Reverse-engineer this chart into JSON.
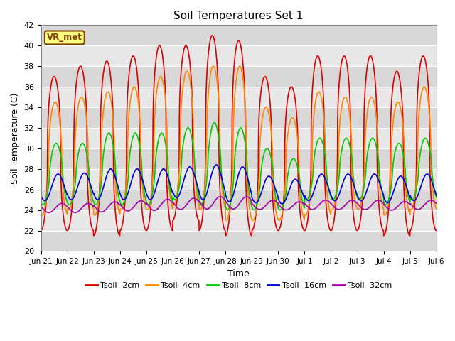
{
  "title": "Soil Temperatures Set 1",
  "xlabel": "Time",
  "ylabel": "Soil Temperature (C)",
  "ylim": [
    20,
    42
  ],
  "figsize": [
    6.4,
    4.8
  ],
  "dpi": 100,
  "background_color": "#ffffff",
  "plot_bg_color": "#e0e0e0",
  "grid_color": "#ffffff",
  "annotation_text": "VR_met",
  "annotation_bg": "#ffff80",
  "annotation_border": "#804000",
  "lines": [
    {
      "label": "Tsoil -2cm",
      "color": "#dd0000",
      "lw": 1.2
    },
    {
      "label": "Tsoil -4cm",
      "color": "#ff8800",
      "lw": 1.2
    },
    {
      "label": "Tsoil -8cm",
      "color": "#00cc00",
      "lw": 1.2
    },
    {
      "label": "Tsoil -16cm",
      "color": "#0000dd",
      "lw": 1.2
    },
    {
      "label": "Tsoil -32cm",
      "color": "#aa00aa",
      "lw": 1.2
    }
  ],
  "xtick_labels": [
    "Jun 21",
    "Jun 22",
    "Jun 23",
    "Jun 24",
    "Jun 25",
    "Jun 26",
    "Jun 27",
    "Jun 28",
    "Jun 29",
    "Jun 30",
    "Jul 1",
    "Jul 2",
    "Jul 3",
    "Jul 4",
    "Jul 5",
    "Jul 6"
  ],
  "ytick_values": [
    20,
    22,
    24,
    26,
    28,
    30,
    32,
    34,
    36,
    38,
    40,
    42
  ],
  "n_days": 15,
  "samples_per_day": 144,
  "day_params": {
    "2cm": {
      "amp": [
        7.5,
        8.0,
        8.5,
        8.5,
        9.0,
        8.5,
        9.5,
        9.5,
        7.5,
        7.0,
        8.5,
        8.5,
        8.5,
        8.0,
        8.5
      ],
      "mean": [
        29.5,
        30.0,
        30.0,
        30.5,
        31.0,
        31.5,
        31.5,
        31.0,
        29.5,
        29.0,
        30.5,
        30.5,
        30.5,
        29.5,
        30.5
      ],
      "phase_shift": 0.0,
      "sharpness": 2.5
    },
    "4cm": {
      "amp": [
        5.5,
        5.5,
        6.0,
        6.0,
        6.5,
        6.5,
        7.0,
        7.5,
        5.5,
        5.0,
        6.0,
        5.5,
        5.5,
        5.5,
        6.0
      ],
      "mean": [
        29.0,
        29.5,
        29.5,
        30.0,
        30.5,
        31.0,
        31.0,
        30.5,
        28.5,
        28.0,
        29.5,
        29.5,
        29.5,
        29.0,
        30.0
      ],
      "phase_shift": 0.04,
      "sharpness": 2.0
    },
    "8cm": {
      "amp": [
        3.0,
        3.0,
        3.5,
        3.5,
        3.5,
        3.5,
        4.0,
        4.0,
        3.0,
        2.5,
        3.0,
        3.0,
        3.0,
        3.0,
        3.0
      ],
      "mean": [
        27.5,
        27.5,
        28.0,
        28.0,
        28.0,
        28.5,
        28.5,
        28.0,
        27.0,
        26.5,
        28.0,
        28.0,
        28.0,
        27.5,
        28.0
      ],
      "phase_shift": 0.08,
      "sharpness": 1.5
    },
    "16cm": {
      "amp": [
        1.3,
        1.3,
        1.5,
        1.5,
        1.5,
        1.5,
        1.7,
        1.7,
        1.3,
        1.2,
        1.3,
        1.3,
        1.3,
        1.3,
        1.3
      ],
      "mean": [
        26.2,
        26.3,
        26.5,
        26.5,
        26.5,
        26.7,
        26.7,
        26.5,
        26.0,
        25.8,
        26.2,
        26.2,
        26.2,
        26.0,
        26.2
      ],
      "phase_shift": 0.15,
      "sharpness": 1.0
    },
    "32cm": {
      "amp": [
        0.45,
        0.45,
        0.5,
        0.5,
        0.55,
        0.55,
        0.6,
        0.6,
        0.45,
        0.4,
        0.45,
        0.45,
        0.45,
        0.43,
        0.45
      ],
      "mean": [
        24.2,
        24.2,
        24.3,
        24.4,
        24.5,
        24.6,
        24.7,
        24.7,
        24.5,
        24.4,
        24.5,
        24.5,
        24.5,
        24.4,
        24.5
      ],
      "phase_shift": 0.3,
      "sharpness": 1.0
    }
  }
}
